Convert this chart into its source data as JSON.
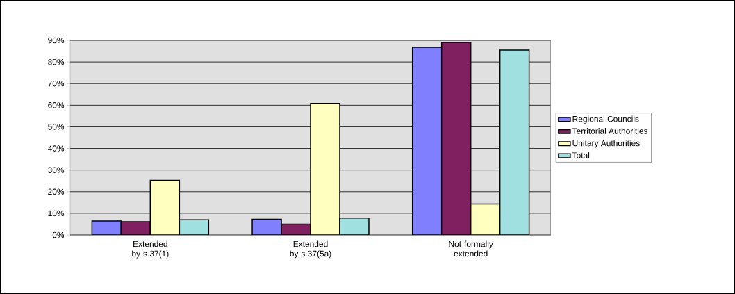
{
  "chart_data": {
    "type": "bar",
    "categories": [
      "Extended by s.37(1)",
      "Extended by s.37(5a)",
      "Not formally extended"
    ],
    "series": [
      {
        "name": "Regional Councils",
        "color": "#8080ff",
        "values": [
          6.4,
          7.2,
          86.8
        ]
      },
      {
        "name": "Territorial Authorities",
        "color": "#802060",
        "values": [
          6.1,
          5.0,
          89.0
        ]
      },
      {
        "name": "Unitary Authorities",
        "color": "#ffffc0",
        "values": [
          25.2,
          60.8,
          14.3
        ]
      },
      {
        "name": "Total",
        "color": "#a0e0e0",
        "values": [
          7.0,
          7.8,
          85.5
        ]
      }
    ],
    "ylim": [
      0,
      90
    ],
    "yticks": [
      {
        "value": 0,
        "label": "0%"
      },
      {
        "value": 10,
        "label": "10%"
      },
      {
        "value": 20,
        "label": "20%"
      },
      {
        "value": 30,
        "label": "30%"
      },
      {
        "value": 40,
        "label": "40%"
      },
      {
        "value": 50,
        "label": "50%"
      },
      {
        "value": 60,
        "label": "60%"
      },
      {
        "value": 70,
        "label": "70%"
      },
      {
        "value": 80,
        "label": "80%"
      },
      {
        "value": 90,
        "label": "90%"
      }
    ],
    "grid": "y",
    "legend": "right"
  }
}
